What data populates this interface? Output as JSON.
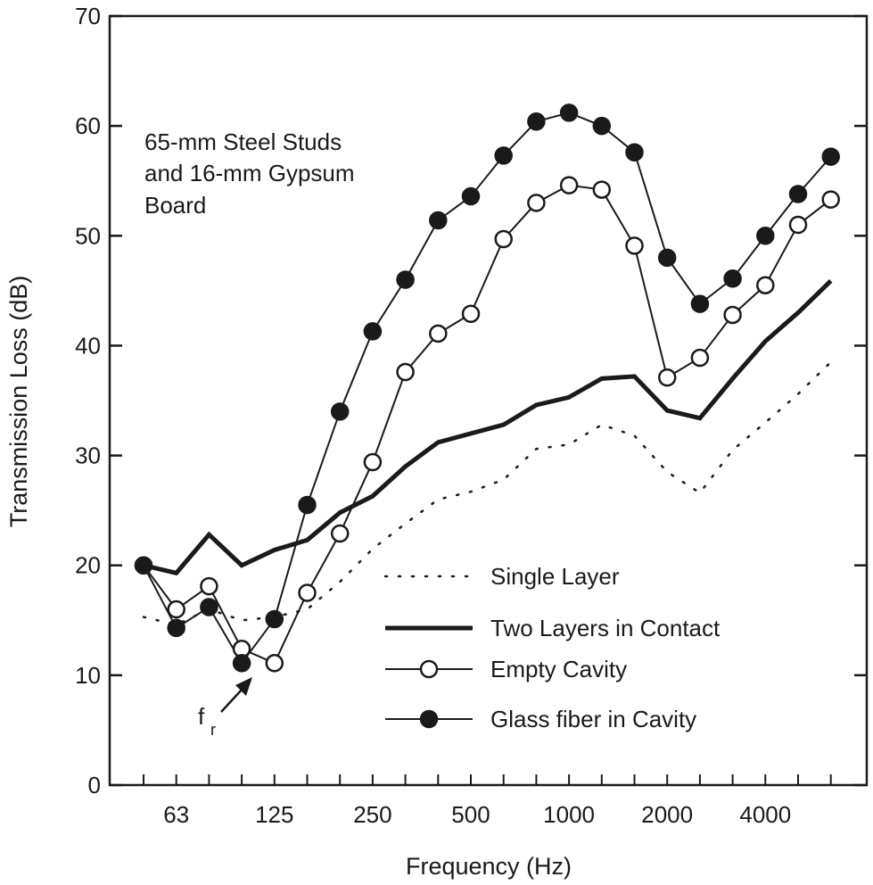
{
  "chart_data": {
    "type": "line",
    "annotation": [
      "65-mm Steel Studs",
      "and 16-mm Gypsum",
      "Board"
    ],
    "xlabel": "Frequency (Hz)",
    "ylabel": "Transmission Loss (dB)",
    "ylim": [
      0,
      70
    ],
    "yticks": [
      0,
      10,
      20,
      30,
      40,
      50,
      60,
      70
    ],
    "x": [
      50,
      63,
      80,
      100,
      125,
      160,
      200,
      250,
      315,
      400,
      500,
      630,
      800,
      1000,
      1250,
      1600,
      2000,
      2500,
      3150,
      4000,
      5000,
      6300
    ],
    "xtick_labels": [
      "63",
      "125",
      "250",
      "500",
      "1000",
      "2000",
      "4000"
    ],
    "resonance_label": {
      "main": "f",
      "sub": "r",
      "x": 100
    },
    "legend_position": "lower-right",
    "grid": false,
    "series": [
      {
        "name": "Single Layer",
        "style": "dotted",
        "values": [
          15.3,
          14.6,
          16,
          15,
          15.3,
          16,
          18.5,
          21.5,
          23.8,
          26,
          26.7,
          27.8,
          30.6,
          31,
          32.8,
          31.8,
          28.5,
          26.6,
          30.5,
          33,
          35.6,
          38.5
        ]
      },
      {
        "name": "Two Layers in Contact",
        "style": "thick",
        "values": [
          20,
          19.3,
          22.8,
          20,
          21.4,
          22.3,
          24.8,
          26.3,
          29,
          31.2,
          32,
          32.8,
          34.6,
          35.3,
          37,
          37.2,
          34.1,
          33.4,
          37,
          40.4,
          43,
          45.9
        ]
      },
      {
        "name": "Empty Cavity",
        "style": "open-circle",
        "values": [
          20,
          16,
          18.1,
          12.4,
          11.1,
          17.5,
          22.9,
          29.4,
          37.6,
          41.1,
          42.9,
          49.7,
          53,
          54.6,
          54.2,
          49.1,
          37.1,
          38.9,
          42.8,
          45.5,
          51,
          53.3
        ]
      },
      {
        "name": "Glass fiber in Cavity",
        "style": "filled-circle",
        "values": [
          20,
          14.3,
          16.2,
          11.1,
          15.1,
          25.5,
          34,
          41.3,
          46,
          51.4,
          53.6,
          57.3,
          60.4,
          61.2,
          60,
          57.6,
          48,
          43.8,
          46.1,
          50,
          53.8,
          57.2
        ]
      }
    ]
  }
}
